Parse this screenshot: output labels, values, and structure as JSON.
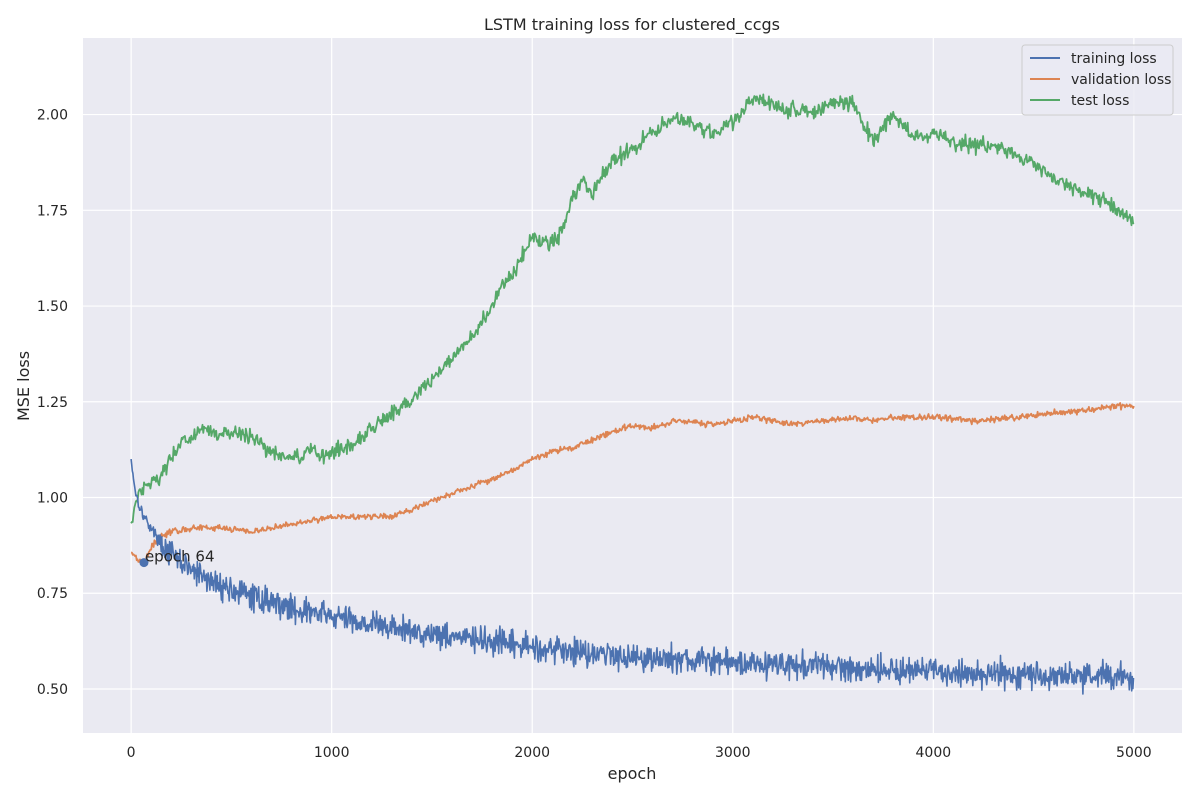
{
  "chart_data": {
    "type": "line",
    "title": "LSTM training loss for clustered_ccgs",
    "xlabel": "epoch",
    "ylabel": "MSE loss",
    "xlim": [
      -240,
      5240
    ],
    "ylim": [
      0.385,
      2.2
    ],
    "x_ticks": [
      0,
      1000,
      2000,
      3000,
      4000,
      5000
    ],
    "x_tick_labels": [
      "0",
      "1000",
      "2000",
      "3000",
      "4000",
      "5000"
    ],
    "y_ticks": [
      0.5,
      0.75,
      1.0,
      1.25,
      1.5,
      1.75,
      2.0
    ],
    "y_tick_labels": [
      "0.50",
      "0.75",
      "1.00",
      "1.25",
      "1.50",
      "1.75",
      "2.00"
    ],
    "grid": true,
    "legend_position": "top-right",
    "background_color": "#eaeaf2",
    "series": [
      {
        "name": "training loss",
        "color": "#4c72b0",
        "noise": 0.035,
        "x": [
          0,
          20,
          40,
          64,
          100,
          150,
          200,
          300,
          400,
          500,
          600,
          700,
          800,
          900,
          1000,
          1200,
          1400,
          1600,
          1800,
          2000,
          2200,
          2400,
          2600,
          2800,
          3000,
          3200,
          3400,
          3600,
          3800,
          4000,
          4200,
          4400,
          4600,
          4800,
          5000
        ],
        "y": [
          1.1,
          1.02,
          0.98,
          0.95,
          0.92,
          0.88,
          0.85,
          0.81,
          0.78,
          0.76,
          0.74,
          0.73,
          0.71,
          0.7,
          0.69,
          0.67,
          0.65,
          0.64,
          0.62,
          0.61,
          0.6,
          0.59,
          0.58,
          0.575,
          0.57,
          0.565,
          0.56,
          0.555,
          0.55,
          0.545,
          0.54,
          0.54,
          0.535,
          0.535,
          0.53
        ]
      },
      {
        "name": "validation loss",
        "color": "#dd8452",
        "noise": 0.008,
        "x": [
          0,
          30,
          64,
          100,
          150,
          200,
          300,
          400,
          500,
          600,
          700,
          800,
          900,
          1000,
          1100,
          1200,
          1300,
          1400,
          1500,
          1600,
          1700,
          1800,
          1900,
          2000,
          2100,
          2200,
          2300,
          2400,
          2500,
          2600,
          2700,
          2800,
          2900,
          3000,
          3100,
          3200,
          3300,
          3400,
          3500,
          3600,
          3700,
          3800,
          3900,
          4000,
          4200,
          4400,
          4600,
          4800,
          4900,
          5000
        ],
        "y": [
          0.86,
          0.84,
          0.83,
          0.87,
          0.9,
          0.91,
          0.92,
          0.92,
          0.92,
          0.91,
          0.92,
          0.93,
          0.94,
          0.95,
          0.95,
          0.95,
          0.95,
          0.97,
          0.99,
          1.01,
          1.03,
          1.05,
          1.07,
          1.1,
          1.12,
          1.13,
          1.15,
          1.17,
          1.19,
          1.18,
          1.2,
          1.2,
          1.19,
          1.2,
          1.21,
          1.2,
          1.19,
          1.2,
          1.2,
          1.21,
          1.2,
          1.21,
          1.21,
          1.21,
          1.2,
          1.21,
          1.22,
          1.23,
          1.24,
          1.24
        ]
      },
      {
        "name": "test loss",
        "color": "#55a868",
        "noise": 0.02,
        "x": [
          0,
          30,
          60,
          100,
          150,
          200,
          250,
          300,
          350,
          400,
          450,
          500,
          550,
          600,
          650,
          700,
          750,
          800,
          850,
          900,
          950,
          1000,
          1050,
          1100,
          1200,
          1300,
          1400,
          1500,
          1600,
          1700,
          1800,
          1850,
          1900,
          1950,
          2000,
          2050,
          2100,
          2150,
          2200,
          2250,
          2300,
          2400,
          2500,
          2600,
          2700,
          2800,
          2900,
          3000,
          3100,
          3200,
          3300,
          3400,
          3500,
          3600,
          3700,
          3800,
          3850,
          3900,
          4000,
          4100,
          4200,
          4300,
          4400,
          4500,
          4600,
          4700,
          4800,
          4900,
          5000
        ],
        "y": [
          0.93,
          1.0,
          1.03,
          1.04,
          1.06,
          1.1,
          1.14,
          1.16,
          1.18,
          1.17,
          1.16,
          1.17,
          1.16,
          1.16,
          1.14,
          1.12,
          1.11,
          1.1,
          1.11,
          1.12,
          1.11,
          1.12,
          1.13,
          1.14,
          1.18,
          1.22,
          1.26,
          1.31,
          1.36,
          1.42,
          1.5,
          1.55,
          1.58,
          1.63,
          1.68,
          1.67,
          1.66,
          1.7,
          1.78,
          1.83,
          1.8,
          1.88,
          1.91,
          1.95,
          1.99,
          1.98,
          1.95,
          1.98,
          2.04,
          2.03,
          2.01,
          2.01,
          2.03,
          2.03,
          1.93,
          2.0,
          1.97,
          1.94,
          1.95,
          1.93,
          1.92,
          1.92,
          1.9,
          1.87,
          1.83,
          1.81,
          1.79,
          1.76,
          1.72
        ]
      }
    ],
    "annotation": {
      "text": "epoch 64",
      "x": 64,
      "y": 0.83,
      "color": "#4c72b0"
    }
  }
}
